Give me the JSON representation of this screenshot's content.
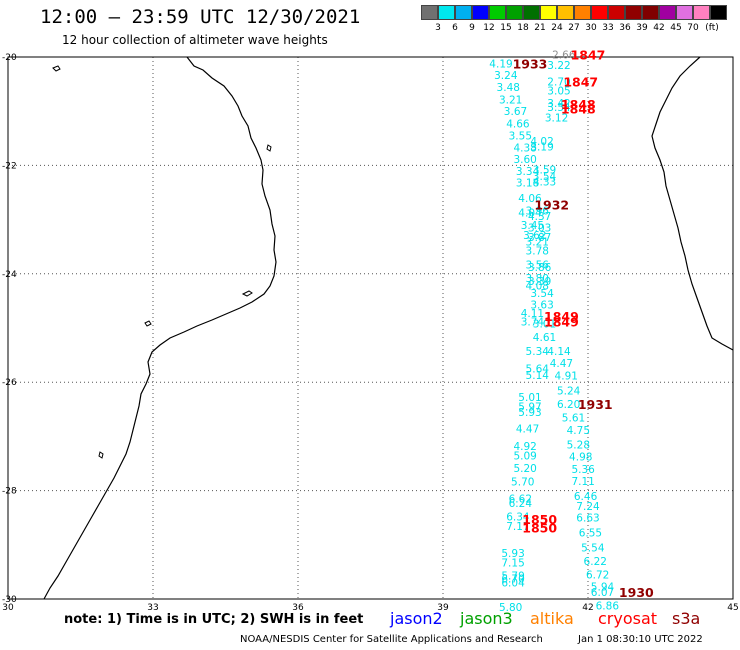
{
  "header": {
    "title": "12:00  –  23:59 UTC 12/30/2021",
    "subtitle": "12 hour collection of altimeter wave heights"
  },
  "legend": {
    "colors": [
      "#707070",
      "#00e8ee",
      "#00b0f0",
      "#0000ff",
      "#00cc00",
      "#00a000",
      "#007000",
      "#ffff00",
      "#ffc000",
      "#ff8000",
      "#ff0000",
      "#cc0000",
      "#900000",
      "#800000",
      "#a000a0",
      "#e070e0",
      "#ff80c0",
      "#000000"
    ],
    "labels": [
      "3",
      "6",
      "9",
      "12",
      "15",
      "18",
      "21",
      "24",
      "27",
      "30",
      "33",
      "36",
      "39",
      "42",
      "45",
      "70"
    ],
    "unit": "(ft)"
  },
  "axes": {
    "x_ticks": [
      "30",
      "33",
      "36",
      "39",
      "42",
      "45"
    ],
    "y_ticks": [
      "-20",
      "-22",
      "-24",
      "-26",
      "-28",
      "-30"
    ]
  },
  "observations": [
    {
      "v": "4.19",
      "lon": 40.2,
      "lat": -20.12
    },
    {
      "v": "2.66",
      "lon": 41.5,
      "lat": -19.95,
      "grey": true
    },
    {
      "v": "3.22",
      "lon": 41.4,
      "lat": -20.15
    },
    {
      "v": "3.24",
      "lon": 40.3,
      "lat": -20.33
    },
    {
      "v": "2.70",
      "lon": 41.4,
      "lat": -20.45
    },
    {
      "v": "3.48",
      "lon": 40.35,
      "lat": -20.55
    },
    {
      "v": "3.05",
      "lon": 41.4,
      "lat": -20.62
    },
    {
      "v": "3.21",
      "lon": 40.4,
      "lat": -20.78
    },
    {
      "v": "3.42",
      "lon": 41.4,
      "lat": -20.85
    },
    {
      "v": "3.54",
      "lon": 41.4,
      "lat": -20.92
    },
    {
      "v": "3.67",
      "lon": 40.5,
      "lat": -21.0
    },
    {
      "v": "3.12",
      "lon": 41.35,
      "lat": -21.12
    },
    {
      "v": "4.66",
      "lon": 40.55,
      "lat": -21.23
    },
    {
      "v": "3.55",
      "lon": 40.6,
      "lat": -21.45
    },
    {
      "v": "4.02",
      "lon": 41.05,
      "lat": -21.55
    },
    {
      "v": "4.38",
      "lon": 40.7,
      "lat": -21.67
    },
    {
      "v": "3.19",
      "lon": 41.05,
      "lat": -21.65
    },
    {
      "v": "3.60",
      "lon": 40.7,
      "lat": -21.88
    },
    {
      "v": "3.34",
      "lon": 40.75,
      "lat": -22.1
    },
    {
      "v": "3.59",
      "lon": 41.1,
      "lat": -22.08
    },
    {
      "v": "3.54",
      "lon": 41.1,
      "lat": -22.2
    },
    {
      "v": "3.18",
      "lon": 40.75,
      "lat": -22.32
    },
    {
      "v": "4.33",
      "lon": 41.1,
      "lat": -22.3
    },
    {
      "v": "4.06",
      "lon": 40.8,
      "lat": -22.6
    },
    {
      "v": "3.96",
      "lon": 40.95,
      "lat": -22.83
    },
    {
      "v": "4.04",
      "lon": 40.8,
      "lat": -22.87
    },
    {
      "v": "4.37",
      "lon": 41.0,
      "lat": -22.93
    },
    {
      "v": "3.45",
      "lon": 40.85,
      "lat": -23.1
    },
    {
      "v": "3.03",
      "lon": 41.0,
      "lat": -23.15
    },
    {
      "v": "3.62",
      "lon": 40.9,
      "lat": -23.28
    },
    {
      "v": "3.87",
      "lon": 41.0,
      "lat": -23.32
    },
    {
      "v": "3.21",
      "lon": 40.95,
      "lat": -23.4
    },
    {
      "v": "3.78",
      "lon": 40.95,
      "lat": -23.57
    },
    {
      "v": "3.56",
      "lon": 40.95,
      "lat": -23.83
    },
    {
      "v": "3.86",
      "lon": 41.0,
      "lat": -23.87
    },
    {
      "v": "3.80",
      "lon": 40.95,
      "lat": -24.08
    },
    {
      "v": "3.39",
      "lon": 41.0,
      "lat": -24.13
    },
    {
      "v": "4.08",
      "lon": 40.95,
      "lat": -24.22
    },
    {
      "v": "3.54",
      "lon": 41.05,
      "lat": -24.35
    },
    {
      "v": "3.63",
      "lon": 41.05,
      "lat": -24.57
    },
    {
      "v": "4.11",
      "lon": 40.85,
      "lat": -24.72
    },
    {
      "v": "3.74",
      "lon": 40.85,
      "lat": -24.88
    },
    {
      "v": "3.01",
      "lon": 41.1,
      "lat": -24.92
    },
    {
      "v": "4.61",
      "lon": 41.1,
      "lat": -25.17
    },
    {
      "v": "5.34",
      "lon": 40.95,
      "lat": -25.42
    },
    {
      "v": "4.14",
      "lon": 41.4,
      "lat": -25.42
    },
    {
      "v": "4.47",
      "lon": 41.45,
      "lat": -25.65
    },
    {
      "v": "5.64",
      "lon": 40.95,
      "lat": -25.75
    },
    {
      "v": "5.14",
      "lon": 40.95,
      "lat": -25.87
    },
    {
      "v": "4.91",
      "lon": 41.55,
      "lat": -25.88
    },
    {
      "v": "5.24",
      "lon": 41.6,
      "lat": -26.15
    },
    {
      "v": "5.01",
      "lon": 40.8,
      "lat": -26.27
    },
    {
      "v": "5.97",
      "lon": 40.8,
      "lat": -26.45
    },
    {
      "v": "5.93",
      "lon": 40.8,
      "lat": -26.55
    },
    {
      "v": "6.20",
      "lon": 41.6,
      "lat": -26.4
    },
    {
      "v": "5.61",
      "lon": 41.7,
      "lat": -26.65
    },
    {
      "v": "4.47",
      "lon": 40.75,
      "lat": -26.85
    },
    {
      "v": "4.75",
      "lon": 41.8,
      "lat": -26.88
    },
    {
      "v": "5.28",
      "lon": 41.8,
      "lat": -27.15
    },
    {
      "v": "4.92",
      "lon": 40.7,
      "lat": -27.18
    },
    {
      "v": "5.09",
      "lon": 40.7,
      "lat": -27.35
    },
    {
      "v": "4.98",
      "lon": 41.85,
      "lat": -27.37
    },
    {
      "v": "5.20",
      "lon": 40.7,
      "lat": -27.58
    },
    {
      "v": "5.36",
      "lon": 41.9,
      "lat": -27.6
    },
    {
      "v": "7.11",
      "lon": 41.9,
      "lat": -27.82
    },
    {
      "v": "5.70",
      "lon": 40.65,
      "lat": -27.83
    },
    {
      "v": "6.46",
      "lon": 41.95,
      "lat": -28.1
    },
    {
      "v": "6.62",
      "lon": 40.6,
      "lat": -28.15
    },
    {
      "v": "6.24",
      "lon": 40.6,
      "lat": -28.23
    },
    {
      "v": "7.24",
      "lon": 42.0,
      "lat": -28.28
    },
    {
      "v": "6.34",
      "lon": 40.55,
      "lat": -28.48
    },
    {
      "v": "6.63",
      "lon": 42.0,
      "lat": -28.5
    },
    {
      "v": "7.17",
      "lon": 40.55,
      "lat": -28.65
    },
    {
      "v": "6.55",
      "lon": 42.05,
      "lat": -28.77
    },
    {
      "v": "5.54",
      "lon": 42.1,
      "lat": -29.05
    },
    {
      "v": "5.93",
      "lon": 40.45,
      "lat": -29.15
    },
    {
      "v": "6.22",
      "lon": 42.15,
      "lat": -29.3
    },
    {
      "v": "7.15",
      "lon": 40.45,
      "lat": -29.33
    },
    {
      "v": "6.72",
      "lon": 42.2,
      "lat": -29.55
    },
    {
      "v": "5.79",
      "lon": 40.45,
      "lat": -29.57
    },
    {
      "v": "6.70",
      "lon": 40.45,
      "lat": -29.62
    },
    {
      "v": "6.04",
      "lon": 40.45,
      "lat": -29.7
    },
    {
      "v": "5.94",
      "lon": 42.3,
      "lat": -29.77
    },
    {
      "v": "6.07",
      "lon": 42.3,
      "lat": -29.87
    },
    {
      "v": "6.86",
      "lon": 42.4,
      "lat": -30.12
    },
    {
      "v": "5.80",
      "lon": 40.4,
      "lat": -30.15
    }
  ],
  "pass_times": [
    {
      "t": "1847",
      "lon": 42.0,
      "lat": -19.95,
      "color": "#ff0000"
    },
    {
      "t": "1933",
      "lon": 40.8,
      "lat": -20.12,
      "color": "#900000"
    },
    {
      "t": "1847",
      "lon": 41.85,
      "lat": -20.45,
      "color": "#ff0000"
    },
    {
      "t": "1848",
      "lon": 41.8,
      "lat": -20.87,
      "color": "#ff0000"
    },
    {
      "t": "1848",
      "lon": 41.8,
      "lat": -20.95,
      "color": "#ff0000"
    },
    {
      "t": "1932",
      "lon": 41.25,
      "lat": -22.72,
      "color": "#900000"
    },
    {
      "t": "1849",
      "lon": 41.45,
      "lat": -24.78,
      "color": "#ff0000"
    },
    {
      "t": "1849",
      "lon": 41.45,
      "lat": -24.88,
      "color": "#ff0000"
    },
    {
      "t": "1931",
      "lon": 42.15,
      "lat": -26.4,
      "color": "#900000"
    },
    {
      "t": "1850",
      "lon": 41.0,
      "lat": -28.52,
      "color": "#ff0000"
    },
    {
      "t": "1850",
      "lon": 41.0,
      "lat": -28.68,
      "color": "#ff0000"
    },
    {
      "t": "1930",
      "lon": 43.0,
      "lat": -29.87,
      "color": "#900000"
    }
  ],
  "footer": {
    "note": "note:  1) Time is in UTC; 2) SWH is in feet",
    "satellites": [
      {
        "name": "jason2",
        "color": "#0000ff"
      },
      {
        "name": "jason3",
        "color": "#00a000"
      },
      {
        "name": "altika",
        "color": "#ff8000"
      },
      {
        "name": "cryosat",
        "color": "#ff0000"
      },
      {
        "name": "s3a",
        "color": "#900000"
      }
    ],
    "credit": "NOAA/NESDIS Center for Satellite Applications and Research",
    "timestamp": "Jan  1 08:30:10 UTC 2022"
  }
}
